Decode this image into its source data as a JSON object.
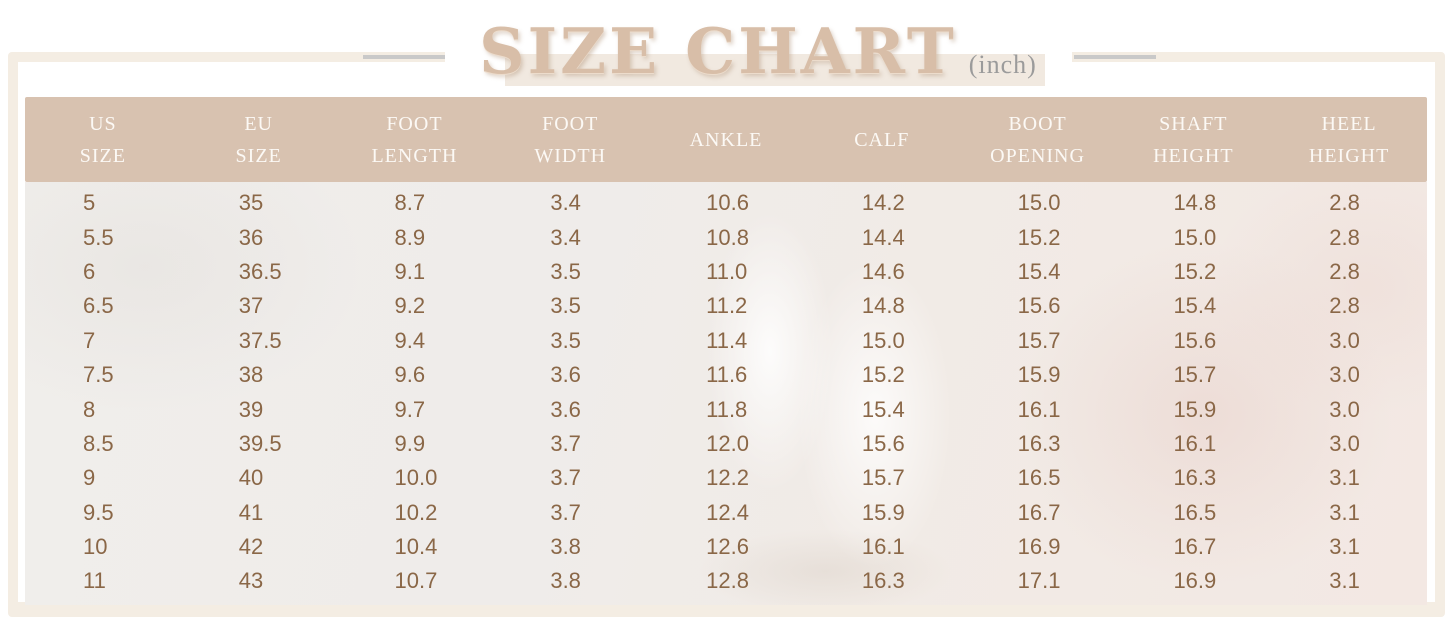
{
  "title": {
    "text": "SIZE CHART",
    "unit": "(inch)"
  },
  "table": {
    "headers": [
      [
        "US",
        "SIZE"
      ],
      [
        "EU",
        "SIZE"
      ],
      [
        "FOOT",
        "LENGTH"
      ],
      [
        "FOOT",
        "WIDTH"
      ],
      [
        "ANKLE"
      ],
      [
        "CALF"
      ],
      [
        "BOOT",
        "OPENING"
      ],
      [
        "SHAFT",
        "HEIGHT"
      ],
      [
        "HEEL",
        "HEIGHT"
      ]
    ]
  },
  "chart_data": {
    "type": "table",
    "title": "SIZE CHART",
    "unit": "inch",
    "columns": [
      "US SIZE",
      "EU SIZE",
      "FOOT LENGTH",
      "FOOT WIDTH",
      "ANKLE",
      "CALF",
      "BOOT OPENING",
      "SHAFT HEIGHT",
      "HEEL HEIGHT"
    ],
    "rows": [
      [
        "5",
        "35",
        "8.7",
        "3.4",
        "10.6",
        "14.2",
        "15.0",
        "14.8",
        "2.8"
      ],
      [
        "5.5",
        "36",
        "8.9",
        "3.4",
        "10.8",
        "14.4",
        "15.2",
        "15.0",
        "2.8"
      ],
      [
        "6",
        "36.5",
        "9.1",
        "3.5",
        "11.0",
        "14.6",
        "15.4",
        "15.2",
        "2.8"
      ],
      [
        "6.5",
        "37",
        "9.2",
        "3.5",
        "11.2",
        "14.8",
        "15.6",
        "15.4",
        "2.8"
      ],
      [
        "7",
        "37.5",
        "9.4",
        "3.5",
        "11.4",
        "15.0",
        "15.7",
        "15.6",
        "3.0"
      ],
      [
        "7.5",
        "38",
        "9.6",
        "3.6",
        "11.6",
        "15.2",
        "15.9",
        "15.7",
        "3.0"
      ],
      [
        "8",
        "39",
        "9.7",
        "3.6",
        "11.8",
        "15.4",
        "16.1",
        "15.9",
        "3.0"
      ],
      [
        "8.5",
        "39.5",
        "9.9",
        "3.7",
        "12.0",
        "15.6",
        "16.3",
        "16.1",
        "3.0"
      ],
      [
        "9",
        "40",
        "10.0",
        "3.7",
        "12.2",
        "15.7",
        "16.5",
        "16.3",
        "3.1"
      ],
      [
        "9.5",
        "41",
        "10.2",
        "3.7",
        "12.4",
        "15.9",
        "16.7",
        "16.5",
        "3.1"
      ],
      [
        "10",
        "42",
        "10.4",
        "3.8",
        "12.6",
        "16.1",
        "16.9",
        "16.7",
        "3.1"
      ],
      [
        "11",
        "43",
        "10.7",
        "3.8",
        "12.8",
        "16.3",
        "17.1",
        "16.9",
        "3.1"
      ]
    ]
  },
  "colors": {
    "panel_bg": "#f4ede3",
    "header_bg": "#d8c2b0",
    "body_text": "#8a6747",
    "title_color": "#d8bea8",
    "unit_color": "#9b9b9b",
    "band_bg": "#f1e9e0",
    "dash_color": "#c9c9c9"
  }
}
